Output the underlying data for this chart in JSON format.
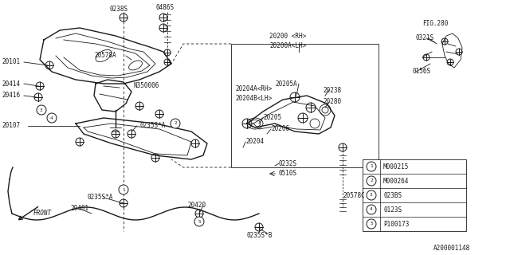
{
  "bg_color": "#ffffff",
  "line_color": "#1a1a1a",
  "diagram_id": "A200001148",
  "fig_ref": "FIG.280",
  "legend": [
    {
      "num": "1",
      "code": "M000215"
    },
    {
      "num": "2",
      "code": "M000264"
    },
    {
      "num": "3",
      "code": "023BS"
    },
    {
      "num": "4",
      "code": "0123S"
    },
    {
      "num": "5",
      "code": "P100173"
    }
  ]
}
